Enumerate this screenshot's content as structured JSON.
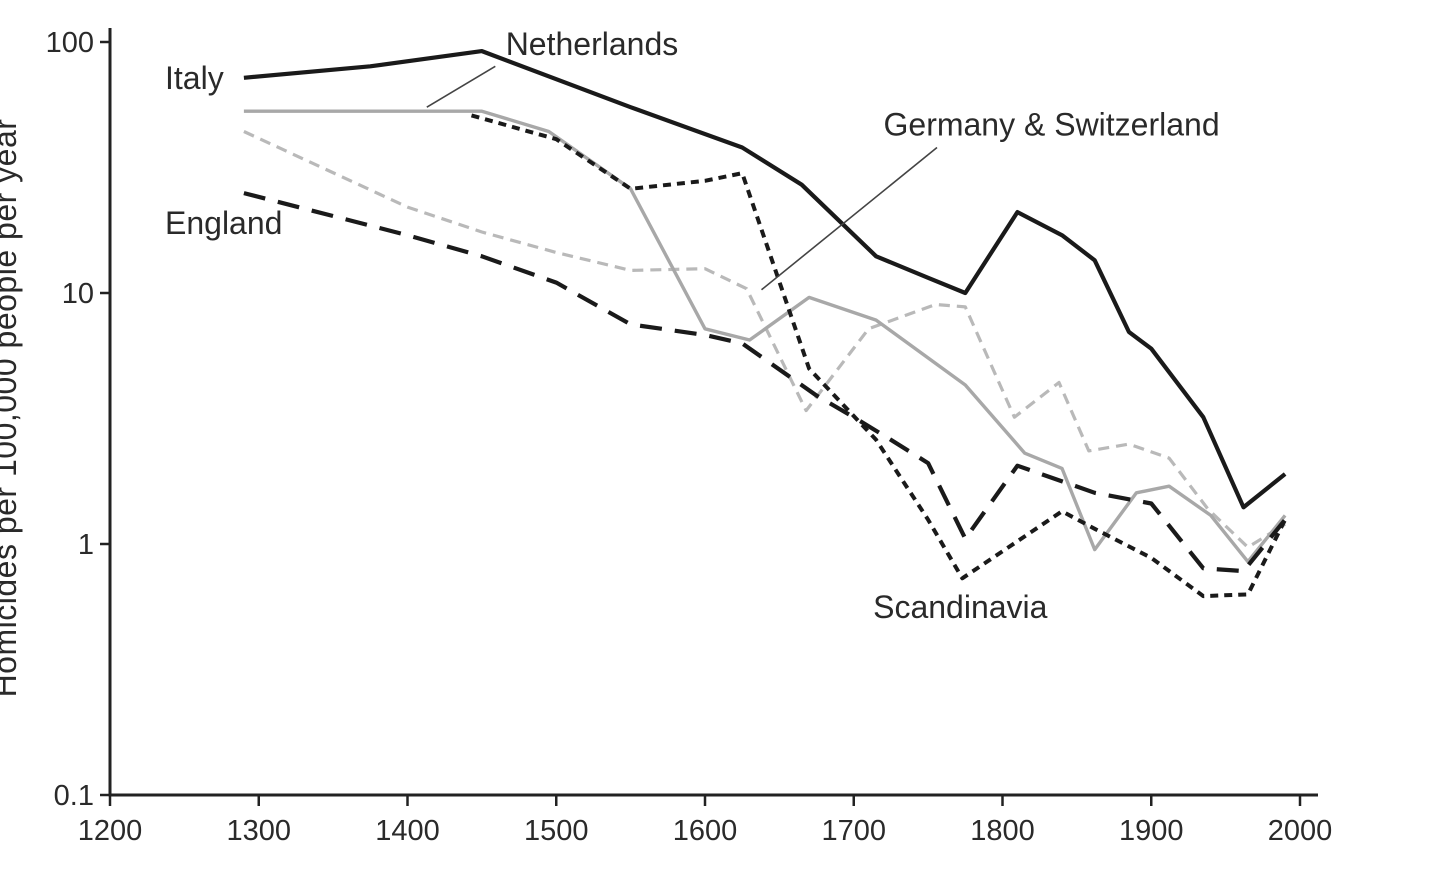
{
  "chart_data": {
    "type": "line",
    "title": "",
    "xlabel": "",
    "ylabel": "Homicides per 100,000 people per year",
    "yscale": "log",
    "xlim": [
      1200,
      2000
    ],
    "ylim": [
      0.1,
      100
    ],
    "grid": false,
    "legend": "inline-labels",
    "text_color": "#2a2a2a",
    "axis_color": "#222222",
    "xticks": [
      "1200",
      "1300",
      "1400",
      "1500",
      "1600",
      "1700",
      "1800",
      "1900",
      "2000"
    ],
    "yticks": [
      "100",
      "10",
      "1",
      "0.1"
    ],
    "series": [
      {
        "name": "Germany & Switzerland",
        "color": "#b9b9b9",
        "style": "dash",
        "width": 3.2,
        "dash": "11 7",
        "points": [
          [
            1290,
            44
          ],
          [
            1400,
            22
          ],
          [
            1450,
            17.5
          ],
          [
            1500,
            14.5
          ],
          [
            1550,
            12.3
          ],
          [
            1600,
            12.5
          ],
          [
            1628,
            10.4
          ],
          [
            1668,
            3.4
          ],
          [
            1710,
            7.2
          ],
          [
            1755,
            9.0
          ],
          [
            1775,
            8.8
          ],
          [
            1808,
            3.2
          ],
          [
            1838,
            4.4
          ],
          [
            1858,
            2.35
          ],
          [
            1885,
            2.5
          ],
          [
            1912,
            2.2
          ],
          [
            1938,
            1.38
          ],
          [
            1965,
            0.97
          ],
          [
            1990,
            1.2
          ]
        ]
      },
      {
        "name": "Netherlands",
        "color": "#a8a8a8",
        "style": "solid",
        "width": 3.4,
        "dash": "",
        "points": [
          [
            1290,
            53
          ],
          [
            1450,
            53
          ],
          [
            1495,
            44
          ],
          [
            1550,
            26
          ],
          [
            1600,
            7.2
          ],
          [
            1630,
            6.5
          ],
          [
            1670,
            9.6
          ],
          [
            1715,
            7.8
          ],
          [
            1775,
            4.3
          ],
          [
            1815,
            2.3
          ],
          [
            1840,
            2.0
          ],
          [
            1862,
            0.95
          ],
          [
            1890,
            1.6
          ],
          [
            1912,
            1.7
          ],
          [
            1940,
            1.3
          ],
          [
            1965,
            0.85
          ],
          [
            1990,
            1.3
          ]
        ]
      },
      {
        "name": "England",
        "color": "#1a1a1a",
        "style": "long-dash",
        "width": 4.2,
        "dash": "22 13",
        "points": [
          [
            1290,
            25
          ],
          [
            1400,
            17
          ],
          [
            1450,
            14
          ],
          [
            1500,
            11
          ],
          [
            1550,
            7.5
          ],
          [
            1600,
            6.8
          ],
          [
            1625,
            6.3
          ],
          [
            1675,
            3.9
          ],
          [
            1700,
            3.2
          ],
          [
            1725,
            2.6
          ],
          [
            1750,
            2.1
          ],
          [
            1775,
            1.05
          ],
          [
            1810,
            2.05
          ],
          [
            1862,
            1.6
          ],
          [
            1900,
            1.45
          ],
          [
            1935,
            0.8
          ],
          [
            1962,
            0.78
          ],
          [
            1990,
            1.25
          ]
        ]
      },
      {
        "name": "Scandinavia",
        "color": "#1a1a1a",
        "style": "short-dash",
        "width": 4,
        "dash": "8 6",
        "points": [
          [
            1443,
            51
          ],
          [
            1500,
            41
          ],
          [
            1550,
            26
          ],
          [
            1600,
            28
          ],
          [
            1625,
            30
          ],
          [
            1670,
            5
          ],
          [
            1715,
            2.6
          ],
          [
            1750,
            1.25
          ],
          [
            1773,
            0.73
          ],
          [
            1840,
            1.35
          ],
          [
            1862,
            1.15
          ],
          [
            1900,
            0.88
          ],
          [
            1935,
            0.62
          ],
          [
            1965,
            0.63
          ],
          [
            1990,
            1.25
          ]
        ]
      },
      {
        "name": "Italy",
        "color": "#1a1a1a",
        "style": "solid",
        "width": 4.2,
        "dash": "",
        "points": [
          [
            1290,
            72
          ],
          [
            1375,
            80
          ],
          [
            1450,
            92
          ],
          [
            1550,
            55
          ],
          [
            1625,
            38
          ],
          [
            1665,
            27
          ],
          [
            1715,
            14
          ],
          [
            1750,
            11.5
          ],
          [
            1775,
            10
          ],
          [
            1810,
            21
          ],
          [
            1840,
            17
          ],
          [
            1862,
            13.5
          ],
          [
            1885,
            7
          ],
          [
            1900,
            6
          ],
          [
            1935,
            3.2
          ],
          [
            1962,
            1.4
          ],
          [
            1990,
            1.9
          ]
        ]
      }
    ],
    "annotations": [
      {
        "text": "Italy",
        "x": 1237,
        "y": 72,
        "anchor": "start"
      },
      {
        "text": "Netherlands",
        "x": 1466,
        "y": 98,
        "anchor": "start",
        "leader": {
          "from": [
            1459,
            80
          ],
          "to": [
            1413,
            55
          ]
        }
      },
      {
        "text": "England",
        "x": 1237,
        "y": 19,
        "anchor": "start"
      },
      {
        "text": "Germany & Switzerland",
        "x": 1720,
        "y": 47,
        "anchor": "start",
        "leader": {
          "from": [
            1756,
            38
          ],
          "to": [
            1638,
            10.3
          ]
        }
      },
      {
        "text": "Scandinavia",
        "x": 1713,
        "y": 0.56,
        "anchor": "start"
      }
    ]
  }
}
